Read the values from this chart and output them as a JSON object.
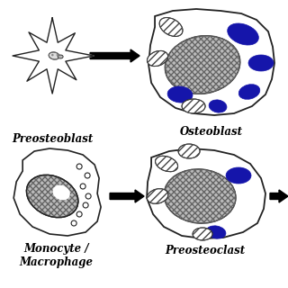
{
  "bg_color": "#ffffff",
  "labels": {
    "preosteoblast": "Preosteoblast",
    "osteoblast": "Osteoblast",
    "monocyte": "Monocyte /\nMacrophage",
    "preosteoclast": "Preosteoclast"
  },
  "cell_outline_color": "#222222",
  "blue_color": "#1515aa",
  "nucleus_face_color": "#bbbbbb",
  "font_size": 8.5
}
